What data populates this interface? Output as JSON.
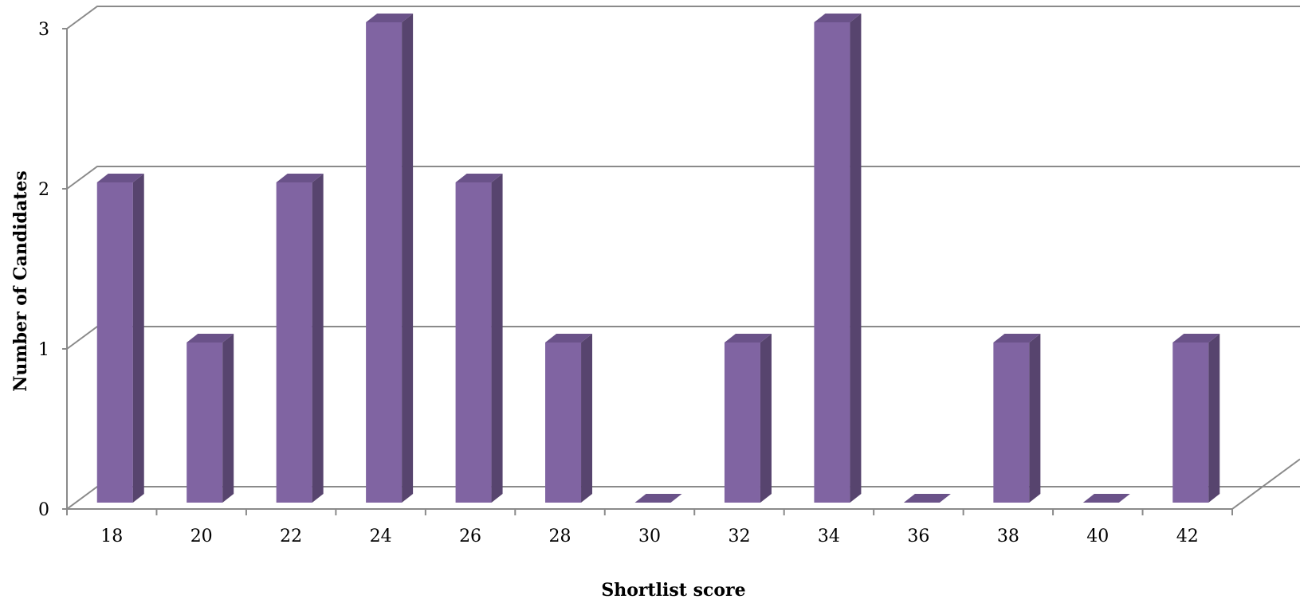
{
  "chart_data": {
    "type": "bar",
    "style": "3d-column",
    "xlabel": "Shortlist score",
    "ylabel": "Number of Candidates",
    "categories": [
      "18",
      "20",
      "22",
      "24",
      "26",
      "28",
      "30",
      "32",
      "34",
      "36",
      "38",
      "40",
      "42"
    ],
    "values": [
      2,
      1,
      2,
      3,
      2,
      1,
      0,
      1,
      3,
      0,
      1,
      0,
      1
    ],
    "ylim": [
      0,
      3
    ],
    "yticks": [
      "0",
      "1",
      "2",
      "3"
    ],
    "grid": true,
    "legend": "none",
    "colors": {
      "bar_front": "#8064a2",
      "bar_side": "#57446e",
      "bar_top": "#6a5289",
      "gridline": "#8a8a8a",
      "axis": "#8a8a8a"
    }
  }
}
